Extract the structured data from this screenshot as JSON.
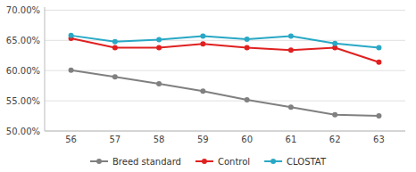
{
  "chart_data": {
    "type": "line",
    "x": [
      56,
      57,
      58,
      59,
      60,
      61,
      62,
      63
    ],
    "xlim": [
      55.4,
      63.6
    ],
    "xticks": [
      56,
      57,
      58,
      59,
      60,
      61,
      62,
      63
    ],
    "ylim": [
      0.5,
      0.705
    ],
    "yticks": [
      {
        "value": 0.5,
        "label": "50.00%"
      },
      {
        "value": 0.55,
        "label": "55.00%"
      },
      {
        "value": 0.6,
        "label": "60.00%"
      },
      {
        "value": 0.65,
        "label": "65.00%"
      },
      {
        "value": 0.7,
        "label": "70.00%"
      }
    ],
    "grid": true,
    "legend": "bottom",
    "marker": "circle",
    "series": [
      {
        "name": "Breed standard",
        "color": "#808080",
        "values": [
          0.6005,
          0.5895,
          0.578,
          0.566,
          0.5515,
          0.5395,
          0.527,
          0.525
        ]
      },
      {
        "name": "Control",
        "color": "#e02020",
        "values": [
          0.6535,
          0.638,
          0.638,
          0.644,
          0.638,
          0.634,
          0.638,
          0.614
        ]
      },
      {
        "name": "CLOSTAT",
        "color": "#29a8c5",
        "values": [
          0.658,
          0.648,
          0.651,
          0.657,
          0.652,
          0.657,
          0.645,
          0.638
        ]
      }
    ]
  }
}
